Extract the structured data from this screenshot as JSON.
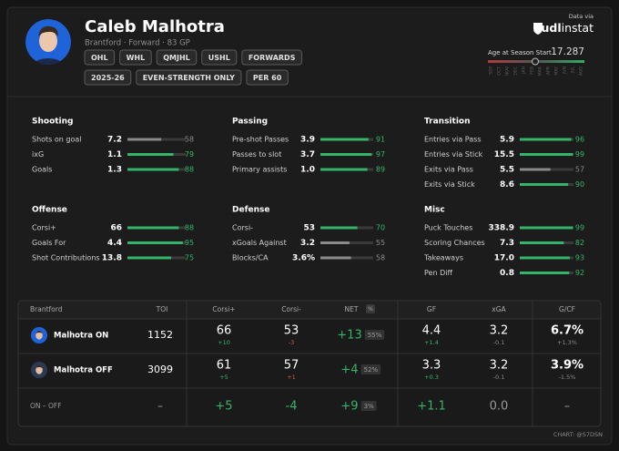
{
  "header": {
    "name": "Caleb Malhotra",
    "subtitle": "Brantford · Forward · 83 GP",
    "tags": [
      "OHL",
      "WHL",
      "QMJHL",
      "USHL",
      "FORWARDS"
    ],
    "filters": [
      "2025-26",
      "EVEN-STRENGTH ONLY",
      "PER 60"
    ],
    "source_label": "Data via",
    "source_brand": "hudl",
    "source_brand2": "instat",
    "age_label": "Age at Season Start",
    "age": "17.287",
    "months": [
      "SEP",
      "OCT",
      "NOV",
      "DEC",
      "JAN",
      "FEB",
      "MAR",
      "APR",
      "MAY",
      "JUN",
      "JUL",
      "AUG"
    ]
  },
  "percentile_scale": [
    0,
    100
  ],
  "stat_groups": [
    {
      "title": "Shooting",
      "rows": [
        {
          "label": "Shots on goal",
          "value": "7.2",
          "percentile": 58,
          "color": "#8a8a8a"
        },
        {
          "label": "ixG",
          "value": "1.1",
          "percentile": 79,
          "color": "#35b56a"
        },
        {
          "label": "Goals",
          "value": "1.3",
          "percentile": 88,
          "color": "#35b56a"
        }
      ]
    },
    {
      "title": "Passing",
      "rows": [
        {
          "label": "Pre-shot Passes",
          "value": "3.9",
          "percentile": 91,
          "color": "#35b56a"
        },
        {
          "label": "Passes to slot",
          "value": "3.7",
          "percentile": 97,
          "color": "#35b56a"
        },
        {
          "label": "Primary assists",
          "value": "1.0",
          "percentile": 89,
          "color": "#35b56a"
        }
      ]
    },
    {
      "title": "Transition",
      "rows": [
        {
          "label": "Entries via Pass",
          "value": "5.9",
          "percentile": 96,
          "color": "#35b56a"
        },
        {
          "label": "Entries via Stick",
          "value": "15.5",
          "percentile": 99,
          "color": "#35b56a"
        },
        {
          "label": "Exits via Pass",
          "value": "5.5",
          "percentile": 57,
          "color": "#8a8a8a"
        },
        {
          "label": "Exits via Stick",
          "value": "8.6",
          "percentile": 90,
          "color": "#35b56a"
        }
      ]
    },
    {
      "title": "Offense",
      "rows": [
        {
          "label": "Corsi+",
          "value": "66",
          "percentile": 88,
          "color": "#35b56a"
        },
        {
          "label": "Goals For",
          "value": "4.4",
          "percentile": 95,
          "color": "#35b56a"
        },
        {
          "label": "Shot Contributions",
          "value": "13.8",
          "percentile": 75,
          "color": "#35b56a"
        }
      ]
    },
    {
      "title": "Defense",
      "rows": [
        {
          "label": "Corsi-",
          "value": "53",
          "percentile": 70,
          "color": "#35b56a"
        },
        {
          "label": "xGoals Against",
          "value": "3.2",
          "percentile": 55,
          "color": "#8a8a8a"
        },
        {
          "label": "Blocks/CA",
          "value": "3.6%",
          "percentile": 58,
          "color": "#8a8a8a"
        }
      ]
    },
    {
      "title": "Misc",
      "rows": [
        {
          "label": "Puck Touches",
          "value": "338.9",
          "percentile": 99,
          "color": "#35b56a"
        },
        {
          "label": "Scoring Chances",
          "value": "7.3",
          "percentile": 82,
          "color": "#35b56a"
        },
        {
          "label": "Takeaways",
          "value": "17.0",
          "percentile": 93,
          "color": "#35b56a"
        },
        {
          "label": "Pen Diff",
          "value": "0.8",
          "percentile": 92,
          "color": "#35b56a"
        }
      ]
    }
  ],
  "table": {
    "headers": [
      "Brantford",
      "TOI",
      "Corsi+",
      "Corsi-",
      "NET",
      "%",
      "GF",
      "xGA",
      "G/CF"
    ],
    "rows": [
      {
        "label": "Malhotra ON",
        "cells": [
          {
            "text": "1152"
          },
          {
            "text": "66",
            "sub": "+10",
            "sub_color": "#35b56a"
          },
          {
            "text": "53",
            "sub": "-3",
            "sub_color": "#e05252"
          },
          {
            "text": "+13",
            "badge": "55%",
            "color": "#35b56a"
          },
          {
            "text": "4.4",
            "sub": "+1.4",
            "sub_color": "#35b56a"
          },
          {
            "text": "3.2",
            "sub": "-0.1",
            "sub_color": "#888888"
          },
          {
            "text": "6.7%",
            "sub": "+1.3%",
            "sub_color": "#888888"
          }
        ]
      },
      {
        "label": "Malhotra OFF",
        "cells": [
          {
            "text": "3099"
          },
          {
            "text": "61",
            "sub": "+5",
            "sub_color": "#35b56a"
          },
          {
            "text": "57",
            "sub": "+1",
            "sub_color": "#e05252"
          },
          {
            "text": "+4",
            "badge": "52%",
            "color": "#35b56a"
          },
          {
            "text": "3.3",
            "sub": "+0.3",
            "sub_color": "#35b56a"
          },
          {
            "text": "3.2",
            "sub": "-0.1",
            "sub_color": "#888888"
          },
          {
            "text": "3.9%",
            "sub": "-1.5%",
            "sub_color": "#888888"
          }
        ]
      },
      {
        "label": "ON – OFF",
        "cells": [
          {
            "text": "–",
            "color": "#9a9a9a"
          },
          {
            "text": "+5",
            "color": "#35b56a"
          },
          {
            "text": "-4",
            "color": "#35b56a"
          },
          {
            "text": "+9",
            "badge": "3%",
            "color": "#35b56a"
          },
          {
            "text": "+1.1",
            "color": "#35b56a"
          },
          {
            "text": "0.0",
            "color": "#9a9a9a"
          },
          {
            "text": "–",
            "color": "#9a9a9a"
          }
        ]
      }
    ]
  },
  "footer": "CHART: @S7DSN"
}
